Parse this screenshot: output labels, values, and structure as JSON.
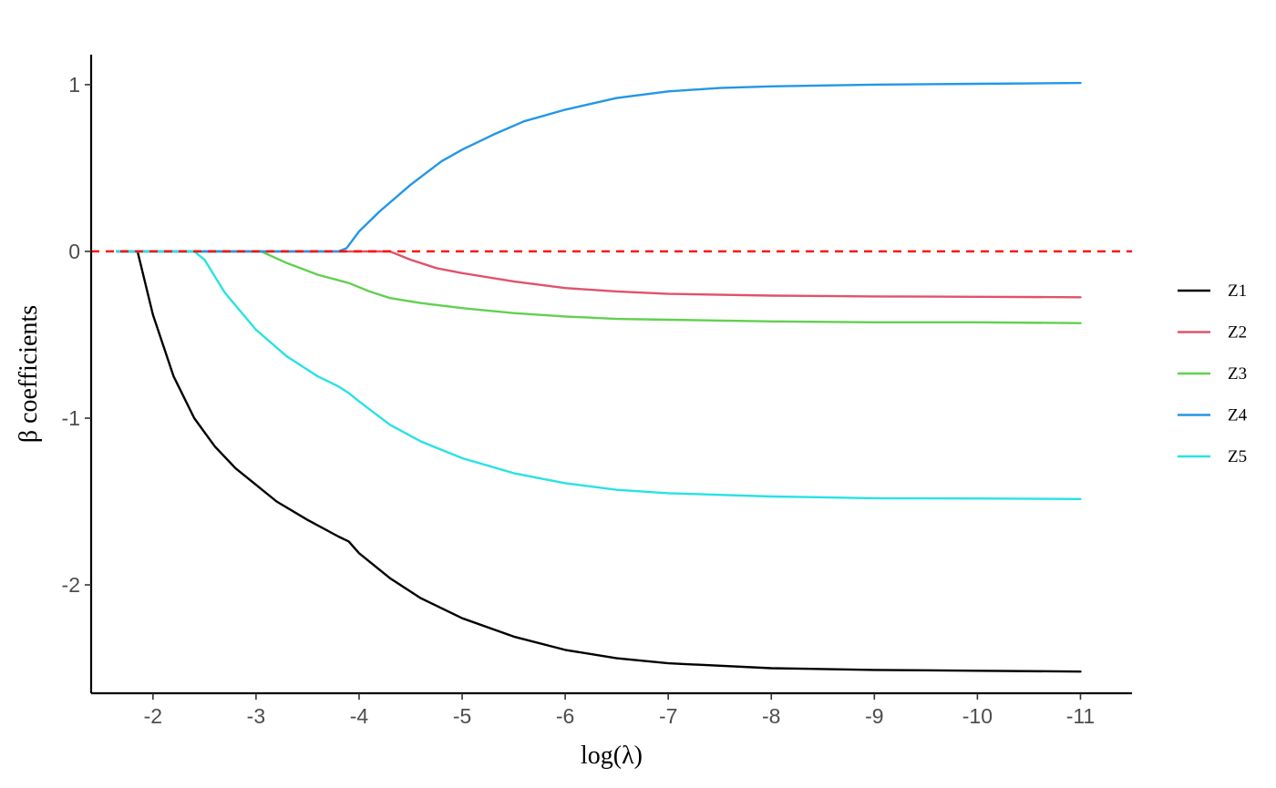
{
  "chart_data": {
    "type": "line",
    "xlabel": "log(λ)",
    "ylabel": "β coefficients",
    "x_reversed": true,
    "xlim": [
      -1.4,
      -11.5
    ],
    "ylim": [
      -2.65,
      1.18
    ],
    "xticks": [
      -2,
      -3,
      -4,
      -5,
      -6,
      -7,
      -8,
      -9,
      -10,
      -11
    ],
    "xtick_labels": [
      "-2",
      "-3",
      "-4",
      "-5",
      "-6",
      "-7",
      "-8",
      "-9",
      "-10",
      "-11"
    ],
    "yticks": [
      1,
      0,
      -1,
      -2
    ],
    "ytick_labels": [
      "1",
      "0",
      "-1",
      "-2"
    ],
    "grid": false,
    "legend_position": "right",
    "reference_line": {
      "y": 0,
      "style": "dashed",
      "color": "#ff0000"
    },
    "series": [
      {
        "name": "Z1",
        "color": "#000000",
        "points": [
          [
            -1.65,
            0
          ],
          [
            -1.85,
            0
          ],
          [
            -2.0,
            -0.38
          ],
          [
            -2.2,
            -0.75
          ],
          [
            -2.4,
            -1.0
          ],
          [
            -2.6,
            -1.17
          ],
          [
            -2.8,
            -1.3
          ],
          [
            -3.0,
            -1.4
          ],
          [
            -3.2,
            -1.5
          ],
          [
            -3.5,
            -1.61
          ],
          [
            -3.8,
            -1.71
          ],
          [
            -3.9,
            -1.74
          ],
          [
            -4.0,
            -1.81
          ],
          [
            -4.3,
            -1.96
          ],
          [
            -4.6,
            -2.08
          ],
          [
            -5.0,
            -2.2
          ],
          [
            -5.5,
            -2.31
          ],
          [
            -6.0,
            -2.39
          ],
          [
            -6.5,
            -2.44
          ],
          [
            -7.0,
            -2.47
          ],
          [
            -8.0,
            -2.5
          ],
          [
            -9.0,
            -2.51
          ],
          [
            -10.0,
            -2.515
          ],
          [
            -11.0,
            -2.52
          ]
        ]
      },
      {
        "name": "Z2",
        "color": "#df536b",
        "points": [
          [
            -1.65,
            0
          ],
          [
            -2.5,
            0
          ],
          [
            -3.0,
            0
          ],
          [
            -3.5,
            0
          ],
          [
            -4.0,
            0
          ],
          [
            -4.3,
            0
          ],
          [
            -4.5,
            -0.05
          ],
          [
            -4.75,
            -0.1
          ],
          [
            -5.0,
            -0.13
          ],
          [
            -5.5,
            -0.18
          ],
          [
            -6.0,
            -0.22
          ],
          [
            -6.5,
            -0.24
          ],
          [
            -7.0,
            -0.255
          ],
          [
            -8.0,
            -0.265
          ],
          [
            -9.0,
            -0.27
          ],
          [
            -10.0,
            -0.272
          ],
          [
            -11.0,
            -0.275
          ]
        ]
      },
      {
        "name": "Z3",
        "color": "#61d04f",
        "points": [
          [
            -1.65,
            0
          ],
          [
            -2.5,
            0
          ],
          [
            -3.05,
            0
          ],
          [
            -3.3,
            -0.07
          ],
          [
            -3.6,
            -0.14
          ],
          [
            -3.9,
            -0.19
          ],
          [
            -4.1,
            -0.24
          ],
          [
            -4.3,
            -0.28
          ],
          [
            -4.6,
            -0.31
          ],
          [
            -5.0,
            -0.34
          ],
          [
            -5.5,
            -0.37
          ],
          [
            -6.0,
            -0.39
          ],
          [
            -6.5,
            -0.405
          ],
          [
            -7.0,
            -0.41
          ],
          [
            -8.0,
            -0.42
          ],
          [
            -9.0,
            -0.425
          ],
          [
            -10.0,
            -0.425
          ],
          [
            -11.0,
            -0.43
          ]
        ]
      },
      {
        "name": "Z4",
        "color": "#2297e6",
        "points": [
          [
            -1.65,
            0
          ],
          [
            -2.5,
            0
          ],
          [
            -3.0,
            0
          ],
          [
            -3.5,
            0
          ],
          [
            -3.8,
            0
          ],
          [
            -3.88,
            0.02
          ],
          [
            -4.0,
            0.12
          ],
          [
            -4.2,
            0.24
          ],
          [
            -4.5,
            0.4
          ],
          [
            -4.8,
            0.54
          ],
          [
            -5.0,
            0.61
          ],
          [
            -5.3,
            0.7
          ],
          [
            -5.6,
            0.78
          ],
          [
            -6.0,
            0.85
          ],
          [
            -6.5,
            0.92
          ],
          [
            -7.0,
            0.96
          ],
          [
            -7.5,
            0.98
          ],
          [
            -8.0,
            0.99
          ],
          [
            -9.0,
            1.0
          ],
          [
            -10.0,
            1.005
          ],
          [
            -11.0,
            1.01
          ]
        ]
      },
      {
        "name": "Z5",
        "color": "#28e2e5",
        "points": [
          [
            -1.65,
            0
          ],
          [
            -2.4,
            0
          ],
          [
            -2.5,
            -0.05
          ],
          [
            -2.7,
            -0.25
          ],
          [
            -3.0,
            -0.47
          ],
          [
            -3.3,
            -0.63
          ],
          [
            -3.6,
            -0.75
          ],
          [
            -3.8,
            -0.81
          ],
          [
            -3.9,
            -0.85
          ],
          [
            -4.0,
            -0.9
          ],
          [
            -4.3,
            -1.04
          ],
          [
            -4.6,
            -1.14
          ],
          [
            -5.0,
            -1.24
          ],
          [
            -5.5,
            -1.33
          ],
          [
            -6.0,
            -1.39
          ],
          [
            -6.5,
            -1.43
          ],
          [
            -7.0,
            -1.45
          ],
          [
            -8.0,
            -1.47
          ],
          [
            -9.0,
            -1.48
          ],
          [
            -10.0,
            -1.482
          ],
          [
            -11.0,
            -1.485
          ]
        ]
      }
    ]
  }
}
